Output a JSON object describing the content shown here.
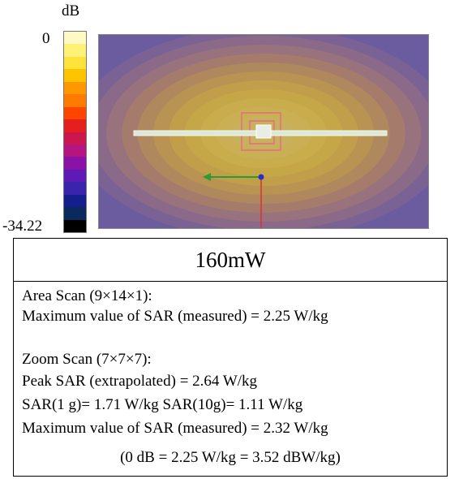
{
  "legend": {
    "unit": "dB",
    "max_label": "0",
    "min_label": "-34.22",
    "colors": [
      "#fff9c4",
      "#fff176",
      "#ffe23a",
      "#ffc400",
      "#ff9800",
      "#ff7a00",
      "#ff4500",
      "#e51e1e",
      "#cc1650",
      "#b4157f",
      "#8a12a6",
      "#5e1ab4",
      "#3a24ad",
      "#141e8c",
      "#0a2a5e",
      "#000000"
    ]
  },
  "scan": {
    "bg_color": "#6a5c9e",
    "contour_colors": [
      "#6a5c9e",
      "#7a6294",
      "#8a6a88",
      "#98727c",
      "#a57c6c",
      "#b0885e",
      "#b99352",
      "#c19e4a",
      "#c6a748",
      "#c9ad4c",
      "#caaf55",
      "#c9b05e"
    ]
  },
  "panel": {
    "title": "160mW",
    "area_scan_label": "Area Scan (9×14×1):",
    "area_max": "Maximum value of SAR (measured) = 2.25 W/kg",
    "zoom_scan_label": "Zoom Scan (7×7×7):",
    "peak_sar": "Peak SAR (extrapolated) = 2.64 W/kg",
    "sar_avg": "SAR(1 g)= 1.71 W/kg SAR(10g)= 1.11 W/kg",
    "zoom_max": "Maximum value of SAR (measured) = 2.32 W/kg",
    "reference": "(0 dB = 2.25 W/kg = 3.52 dBW/kg)"
  }
}
